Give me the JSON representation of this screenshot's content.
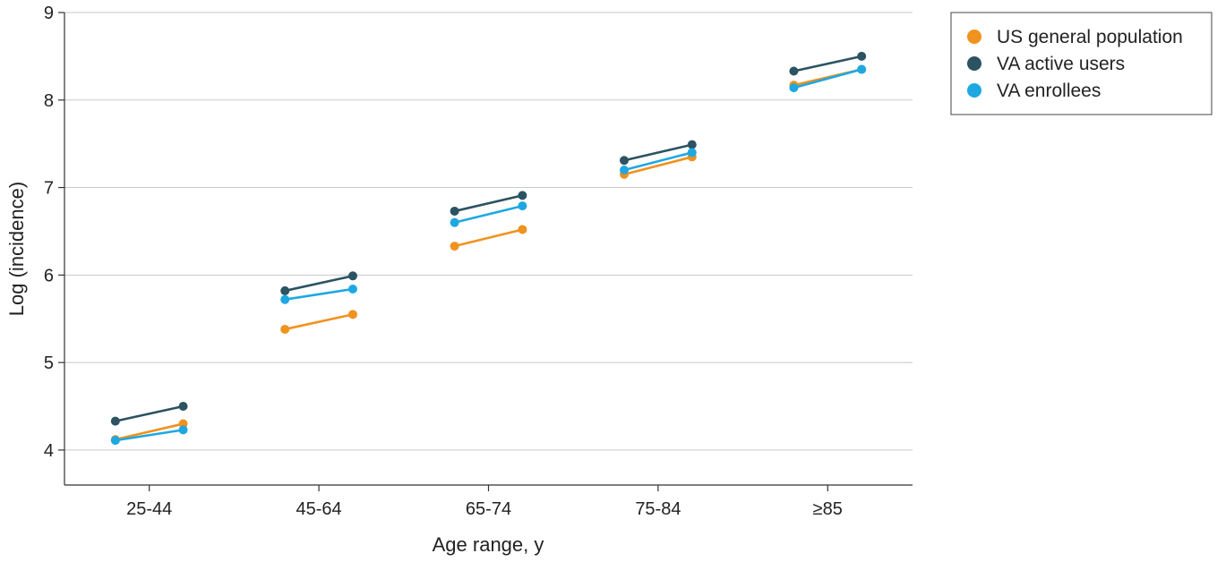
{
  "chart_data": {
    "type": "line",
    "title": "",
    "xlabel": "Age range, y",
    "ylabel": "Log (incidence)",
    "ylim": [
      3.6,
      9.0
    ],
    "yticks": [
      4,
      5,
      6,
      7,
      8,
      9
    ],
    "grid": true,
    "legend_position": "top-right outside",
    "categories": [
      "25-44",
      "45-64",
      "65-74",
      "75-84",
      "≥85"
    ],
    "point_spacing": 0.8,
    "series": [
      {
        "name": "US general population",
        "color": "#F0921E",
        "segments": [
          [
            4.12,
            4.3
          ],
          [
            5.38,
            5.55
          ],
          [
            6.33,
            6.52
          ],
          [
            7.15,
            7.35
          ],
          [
            8.17,
            8.35
          ]
        ]
      },
      {
        "name": "VA active users",
        "color": "#2B5361",
        "segments": [
          [
            4.33,
            4.5
          ],
          [
            5.82,
            5.99
          ],
          [
            6.73,
            6.91
          ],
          [
            7.31,
            7.49
          ],
          [
            8.33,
            8.5
          ]
        ]
      },
      {
        "name": "VA enrollees",
        "color": "#1DA8E2",
        "segments": [
          [
            4.11,
            4.23
          ],
          [
            5.72,
            5.84
          ],
          [
            6.6,
            6.79
          ],
          [
            7.2,
            7.4
          ],
          [
            8.14,
            8.35
          ]
        ]
      }
    ]
  }
}
